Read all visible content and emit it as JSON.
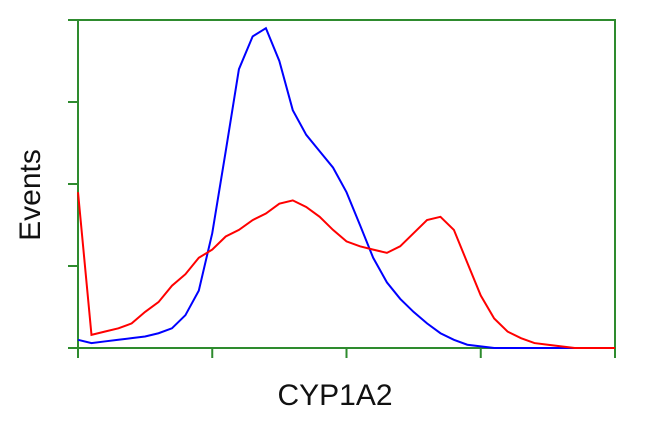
{
  "chart_data": {
    "type": "line",
    "xlabel": "CYP1A2",
    "ylabel": "Events",
    "x": [
      1,
      1.26,
      1.58,
      2,
      2.51,
      3.16,
      3.98,
      5.01,
      6.31,
      7.94,
      10,
      12.6,
      15.8,
      20,
      25.1,
      31.6,
      39.8,
      50.1,
      63.1,
      79.4,
      100,
      126,
      158,
      200,
      251,
      316,
      398,
      501,
      631,
      794,
      1000,
      1259,
      1585,
      1995,
      2512,
      3162,
      3981,
      5012,
      6310,
      7943,
      10000
    ],
    "series": [
      {
        "color": "#0000ff",
        "values": [
          5,
          3,
          4,
          5,
          6,
          7,
          9,
          12,
          20,
          35,
          70,
          120,
          170,
          190,
          195,
          175,
          145,
          130,
          120,
          110,
          95,
          75,
          55,
          40,
          30,
          22,
          15,
          9,
          5,
          2,
          1,
          0,
          0,
          0,
          0,
          0,
          0,
          0,
          0,
          0,
          0
        ]
      },
      {
        "color": "#ff0000",
        "values": [
          95,
          8,
          10,
          12,
          15,
          22,
          28,
          38,
          45,
          55,
          60,
          68,
          72,
          78,
          82,
          88,
          90,
          86,
          80,
          72,
          65,
          62,
          60,
          58,
          62,
          70,
          78,
          80,
          72,
          52,
          32,
          18,
          10,
          6,
          3,
          2,
          1,
          0,
          0,
          0,
          0
        ]
      }
    ],
    "xscale": "log",
    "xlim": [
      1,
      10000
    ],
    "xticks": [
      1,
      10,
      100,
      1000,
      10000
    ],
    "ylim": [
      0,
      200
    ],
    "yticks": [
      0,
      50,
      100,
      150,
      200
    ],
    "axis_color": "#2e8b2e"
  }
}
